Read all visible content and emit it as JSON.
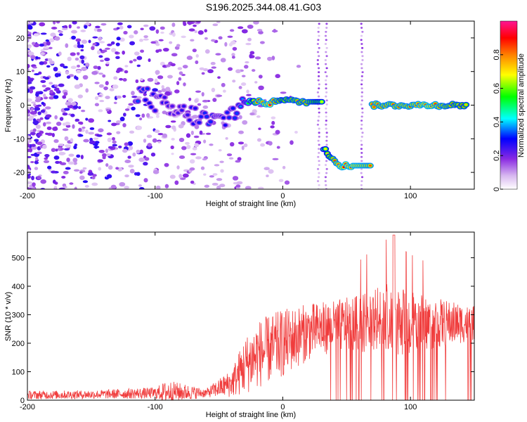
{
  "title": "S196.2025.344.08.41.G03",
  "chart_data": [
    {
      "type": "heatmap",
      "xlabel": "Height of straight line (km)",
      "ylabel": "Frequency (Hz)",
      "xlim": [
        -200,
        150
      ],
      "ylim": [
        -25,
        25
      ],
      "xticks": [
        -200,
        -100,
        0,
        100
      ],
      "yticks": [
        20,
        10,
        0,
        -10,
        -20
      ],
      "colorbar": {
        "label": "Normalized spectral amplitude",
        "range": [
          0,
          1
        ],
        "ticks": [
          0,
          0.2,
          0.4,
          0.6,
          0.8
        ],
        "colors": [
          "#ffffff",
          "#d8b8f0",
          "#8a2be2",
          "#0000ff",
          "#00ffff",
          "#00ff00",
          "#ffff00",
          "#ff8000",
          "#ff0000",
          "#ff1493"
        ]
      },
      "ridge": [
        {
          "x": -115,
          "y": 4,
          "amp": 0.35
        },
        {
          "x": -100,
          "y": 1,
          "amp": 0.3
        },
        {
          "x": -85,
          "y": -2,
          "amp": 0.25
        },
        {
          "x": -70,
          "y": -3,
          "amp": 0.3
        },
        {
          "x": -55,
          "y": -5,
          "amp": 0.35
        },
        {
          "x": -45,
          "y": -4,
          "amp": 0.3
        },
        {
          "x": -30,
          "y": 1,
          "amp": 0.4
        },
        {
          "x": -20,
          "y": 1,
          "amp": 0.9
        },
        {
          "x": -10,
          "y": 0.5,
          "amp": 0.95
        },
        {
          "x": 0,
          "y": 2,
          "amp": 0.8
        },
        {
          "x": 10,
          "y": 1,
          "amp": 0.85
        },
        {
          "x": 20,
          "y": 1,
          "amp": 0.85
        },
        {
          "x": 32,
          "y": -13,
          "amp": 0.7
        },
        {
          "x": 45,
          "y": -18,
          "amp": 0.95
        },
        {
          "x": 55,
          "y": -18,
          "amp": 0.95
        },
        {
          "x": 70,
          "y": 0,
          "amp": 0.9
        },
        {
          "x": 85,
          "y": 0,
          "amp": 0.9
        },
        {
          "x": 100,
          "y": 0,
          "amp": 0.9
        },
        {
          "x": 115,
          "y": 0,
          "amp": 0.95
        },
        {
          "x": 130,
          "y": 0,
          "amp": 0.85
        },
        {
          "x": 145,
          "y": 0,
          "amp": 0.8
        }
      ]
    },
    {
      "type": "line",
      "xlabel": "Height of straight line (km)",
      "ylabel": "SNR (10 * v/v)",
      "xlim": [
        -200,
        150
      ],
      "ylim": [
        0,
        590
      ],
      "xticks": [
        -200,
        -100,
        0,
        100
      ],
      "yticks": [
        0,
        100,
        200,
        300,
        400,
        500
      ],
      "color": "#f03c3c",
      "envelope": [
        {
          "x": -200,
          "mean": 18,
          "spread": 15
        },
        {
          "x": -150,
          "mean": 20,
          "spread": 15
        },
        {
          "x": -100,
          "mean": 25,
          "spread": 20
        },
        {
          "x": -90,
          "mean": 30,
          "spread": 40
        },
        {
          "x": -60,
          "mean": 25,
          "spread": 15
        },
        {
          "x": -40,
          "mean": 60,
          "spread": 50
        },
        {
          "x": -30,
          "mean": 120,
          "spread": 100
        },
        {
          "x": -20,
          "mean": 160,
          "spread": 120
        },
        {
          "x": 0,
          "mean": 200,
          "spread": 120
        },
        {
          "x": 20,
          "mean": 240,
          "spread": 100
        },
        {
          "x": 40,
          "mean": 260,
          "spread": 90
        },
        {
          "x": 60,
          "mean": 270,
          "spread": 100
        },
        {
          "x": 80,
          "mean": 280,
          "spread": 130
        },
        {
          "x": 100,
          "mean": 270,
          "spread": 110
        },
        {
          "x": 150,
          "mean": 270,
          "spread": 60
        }
      ]
    }
  ]
}
